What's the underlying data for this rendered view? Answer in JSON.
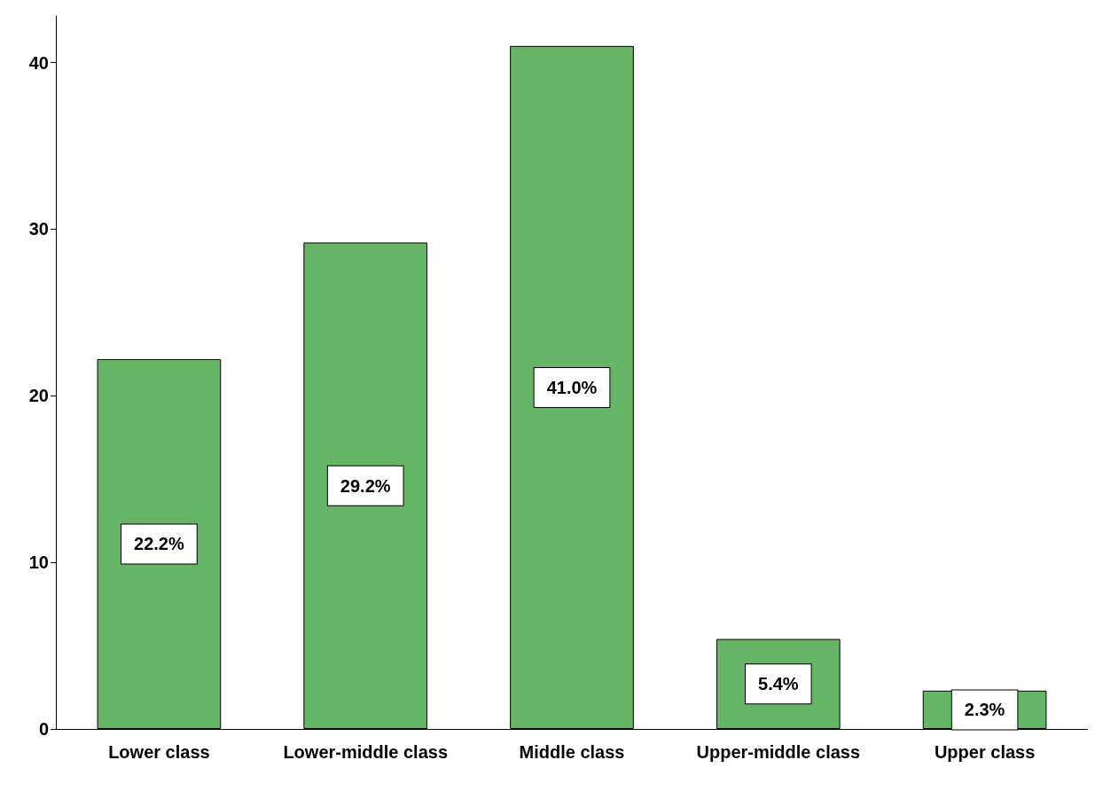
{
  "chart_data": {
    "type": "bar",
    "categories": [
      "Lower class",
      "Lower-middle class",
      "Middle class",
      "Upper-middle class",
      "Upper class"
    ],
    "values": [
      22.2,
      29.2,
      41.0,
      5.4,
      2.3
    ],
    "value_labels": [
      "22.2%",
      "29.2%",
      "41.0%",
      "5.4%",
      "2.3%"
    ],
    "color": "#66b566",
    "ylim": [
      0,
      42.8
    ],
    "yticks": [
      0,
      10,
      20,
      30,
      40
    ],
    "grid": false
  }
}
